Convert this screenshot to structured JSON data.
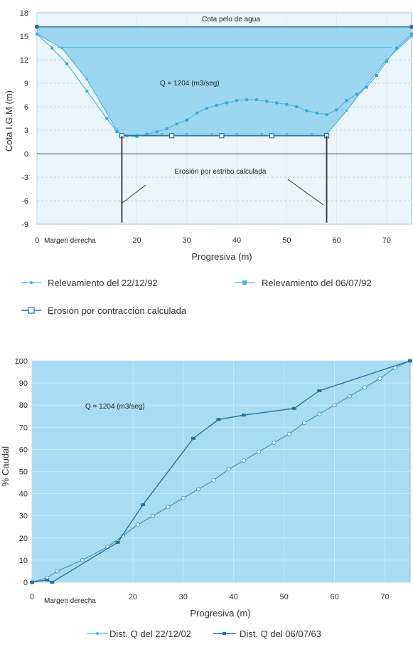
{
  "colors": {
    "accent_light": "#4fb5e0",
    "accent_dark": "#2a6f98",
    "fill": "#8fd0ee",
    "fill_light": "#bfe5f5",
    "grid": "#ffffff",
    "erosion_line": "#333333"
  },
  "chart_data": [
    {
      "type": "area",
      "ylabel": "Cota I.G.M (m)",
      "xlabel": "Progresiva (m)",
      "xlim": [
        0,
        75
      ],
      "ylim": [
        -9,
        18
      ],
      "xticks": [
        "0",
        "20",
        "30",
        "40",
        "50",
        "60",
        "70"
      ],
      "xtick_values": [
        0,
        20,
        30,
        40,
        50,
        60,
        70
      ],
      "yticks": [
        "18",
        "15",
        "12",
        "9",
        "6",
        "3",
        "0",
        "-3",
        "-6",
        "-9"
      ],
      "ytick_values": [
        18,
        15,
        12,
        9,
        6,
        3,
        0,
        -3,
        -6,
        -9
      ],
      "x_margin_label": "Margen derecha",
      "annotations": {
        "water_label": "Cota pelo de agua",
        "flow": "Q = 1204 (m3/seg)",
        "erosion": "Erosión por estribo calculada"
      },
      "water_level": 16.2,
      "series": [
        {
          "name": "Relevamiento del 22/12/92",
          "x": [
            0,
            5,
            10,
            16,
            17,
            20,
            25,
            30,
            35,
            40,
            45,
            50,
            55,
            58,
            62,
            65,
            70,
            75
          ],
          "y": [
            15.3,
            13.5,
            9.5,
            3.0,
            2.4,
            2.4,
            2.5,
            2.5,
            2.5,
            2.5,
            2.5,
            2.5,
            2.5,
            2.5,
            5.5,
            8.0,
            12.0,
            15.0
          ]
        },
        {
          "name": "Relevamiento del 06/07/92",
          "x": [
            0,
            3,
            6,
            10,
            14,
            16,
            18,
            20,
            22,
            24,
            26,
            28,
            30,
            32,
            34,
            36,
            38,
            40,
            42,
            44,
            46,
            48,
            50,
            52,
            54,
            56,
            58,
            60,
            62,
            64,
            66,
            68,
            70,
            72,
            75
          ],
          "y": [
            15.3,
            13.5,
            11.5,
            8.0,
            4.5,
            2.8,
            2.3,
            2.2,
            2.5,
            2.8,
            3.2,
            3.8,
            4.3,
            5.2,
            5.8,
            6.2,
            6.5,
            6.8,
            6.9,
            6.9,
            6.7,
            6.5,
            6.3,
            6.0,
            5.5,
            5.2,
            5.0,
            5.6,
            6.8,
            7.6,
            8.5,
            10.0,
            11.8,
            13.5,
            15.3
          ]
        },
        {
          "name": "Erosión por contracción calculada",
          "x": [
            17,
            27,
            37,
            47,
            58
          ],
          "y": [
            2.3,
            2.3,
            2.3,
            2.3,
            2.3
          ]
        }
      ],
      "erosion_lines": [
        {
          "x": 17,
          "y_top": 2.3,
          "y_bottom": -8.8
        },
        {
          "x": 58,
          "y_top": 2.3,
          "y_bottom": -8.8
        }
      ],
      "legend": [
        {
          "label": "Relevamiento del 22/12/92",
          "style": "light"
        },
        {
          "label": "Relevamiento del 06/07/92",
          "style": "dark-square"
        },
        {
          "label": "Erosión por contracción calculada",
          "style": "erosion"
        }
      ]
    },
    {
      "type": "line",
      "ylabel": "% Caudal",
      "xlabel": "Progresiva (m)",
      "xlim": [
        0,
        75
      ],
      "ylim": [
        0,
        100
      ],
      "xticks": [
        "0",
        "20",
        "30",
        "40",
        "50",
        "60",
        "70"
      ],
      "xtick_values": [
        0,
        20,
        30,
        40,
        50,
        60,
        70
      ],
      "yticks": [
        "100",
        "90",
        "80",
        "70",
        "60",
        "50",
        "40",
        "30",
        "20",
        "10",
        "0"
      ],
      "ytick_values": [
        100,
        90,
        80,
        70,
        60,
        50,
        40,
        30,
        20,
        10,
        0
      ],
      "x_margin_label": "Margen derecha",
      "annotations": {
        "flow": "Q = 1204 (m3/seg)"
      },
      "series": [
        {
          "name": "Dist. Q del 22/12/02",
          "x": [
            0,
            3,
            5,
            10,
            15,
            18,
            21,
            24,
            27,
            30,
            33,
            36,
            39,
            42,
            45,
            48,
            51,
            54,
            57,
            60,
            63,
            66,
            69,
            72,
            75
          ],
          "y": [
            0,
            2,
            5,
            10,
            16,
            21,
            26,
            30,
            34,
            38,
            42,
            46,
            51,
            55,
            59,
            63,
            67,
            72,
            76,
            80,
            84,
            88,
            92,
            97,
            100
          ]
        },
        {
          "name": "Dist. Q del 06/07/63",
          "x": [
            0,
            3,
            4,
            17,
            22,
            32,
            37,
            42,
            52,
            57,
            75
          ],
          "y": [
            0,
            1,
            0,
            18,
            35,
            65,
            73.5,
            75.5,
            78.5,
            86.5,
            100
          ]
        }
      ],
      "legend": [
        {
          "label": "Dist. Q del 22/12/02",
          "style": "light"
        },
        {
          "label": "Dist. Q del 06/07/63",
          "style": "dark"
        }
      ]
    }
  ]
}
